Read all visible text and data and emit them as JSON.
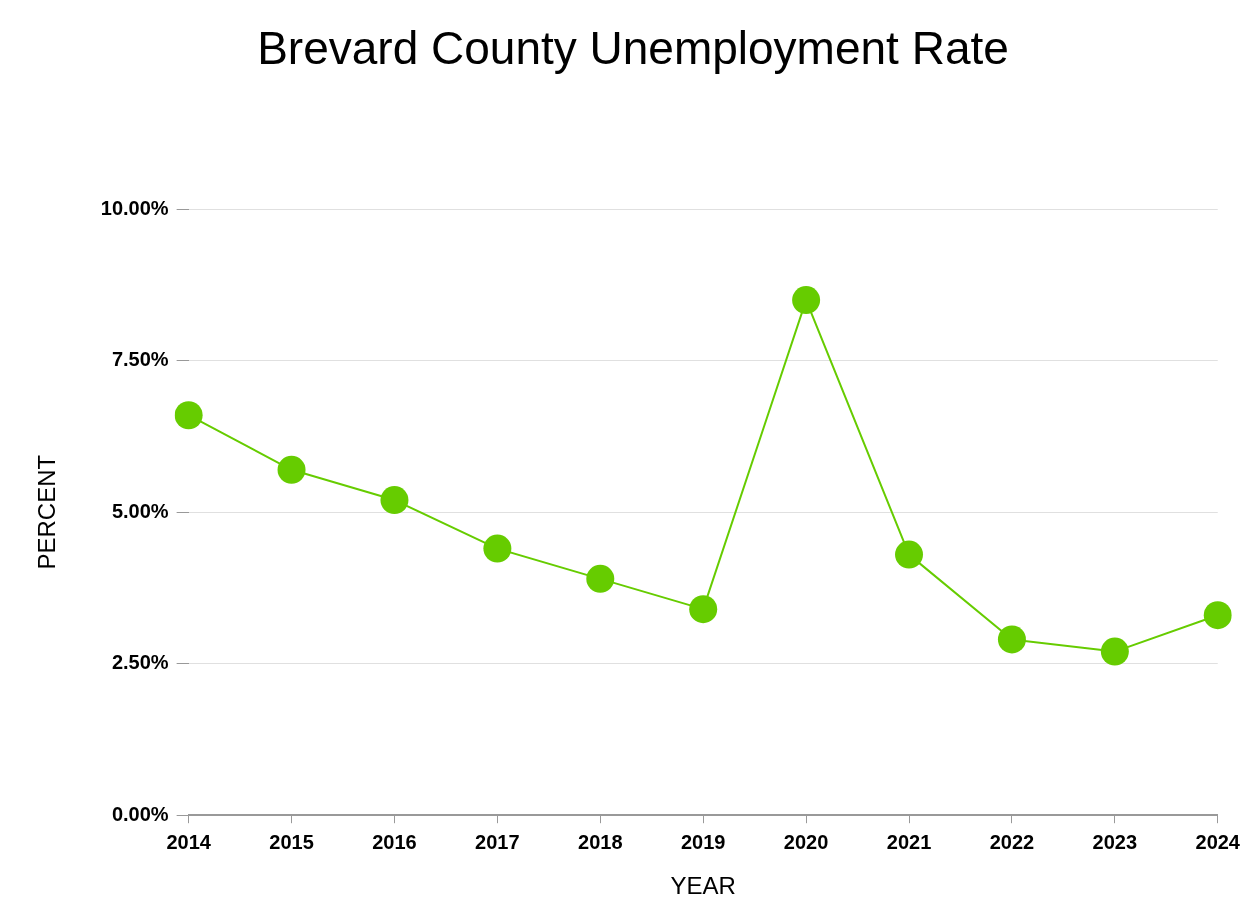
{
  "chart_data": {
    "type": "line",
    "title": "Brevard County Unemployment Rate",
    "xlabel": "YEAR",
    "ylabel": "PERCENT",
    "categories": [
      "2014",
      "2015",
      "2016",
      "2017",
      "2018",
      "2019",
      "2020",
      "2021",
      "2022",
      "2023",
      "2024"
    ],
    "series": [
      {
        "color": "#66cc00",
        "values": [
          6.6,
          5.7,
          5.2,
          4.4,
          3.9,
          3.4,
          8.5,
          4.3,
          2.9,
          2.7,
          3.3
        ]
      }
    ],
    "ylim": [
      0,
      10
    ],
    "yticks": [
      {
        "value": 0,
        "label": "0.00%"
      },
      {
        "value": 2.5,
        "label": "2.50%"
      },
      {
        "value": 5,
        "label": "5.00%"
      },
      {
        "value": 7.5,
        "label": "7.50%"
      },
      {
        "value": 10,
        "label": "10.00%"
      }
    ],
    "grid": "y",
    "legend": false,
    "marker": "circle",
    "line_style": "solid"
  }
}
